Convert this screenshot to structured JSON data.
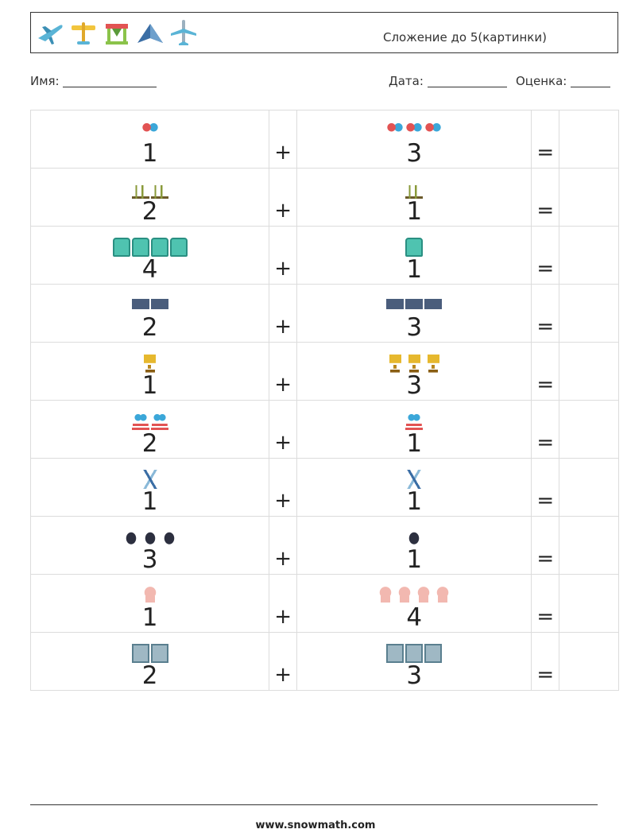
{
  "header": {
    "logos": [
      "airplane-icon",
      "propeller-plane-icon",
      "glider-icon",
      "stealth-jet-icon",
      "jet-icon"
    ],
    "title": "Сложение до 5(картинки)"
  },
  "meta": {
    "name_label": "Имя:",
    "date_label": "Дата:",
    "grade_label": "Оценка:"
  },
  "operators": {
    "plus": "+",
    "equals": "="
  },
  "rows": [
    {
      "a": "1",
      "a_icon": "balloons-icon",
      "b": "3",
      "b_icon": "balloons-icon"
    },
    {
      "a": "2",
      "a_icon": "plant-icon",
      "b": "1",
      "b_icon": "plant-icon"
    },
    {
      "a": "4",
      "a_icon": "bus-icon",
      "b": "1",
      "b_icon": "bus-icon"
    },
    {
      "a": "2",
      "a_icon": "van-icon",
      "b": "3",
      "b_icon": "van-icon"
    },
    {
      "a": "1",
      "a_icon": "trophy-icon",
      "b": "3",
      "b_icon": "trophy-icon"
    },
    {
      "a": "2",
      "a_icon": "cake-icon",
      "b": "1",
      "b_icon": "cake-icon"
    },
    {
      "a": "1",
      "a_icon": "ladder-icon",
      "b": "1",
      "b_icon": "ladder-icon"
    },
    {
      "a": "3",
      "a_icon": "beetle-icon",
      "b": "1",
      "b_icon": "beetle-icon"
    },
    {
      "a": "1",
      "a_icon": "chef-icon",
      "b": "4",
      "b_icon": "chef-icon"
    },
    {
      "a": "2",
      "a_icon": "maze-icon",
      "b": "3",
      "b_icon": "maze-icon"
    }
  ],
  "footer": {
    "url": "www.snowmath.com"
  }
}
